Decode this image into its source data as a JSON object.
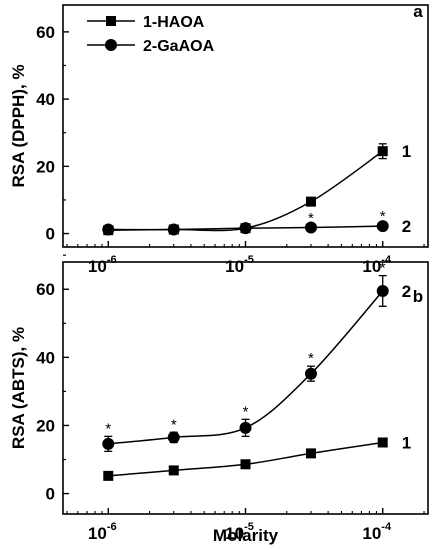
{
  "chart_data": [
    {
      "type": "line",
      "panel": "a",
      "ylabel": "RSA (DPPH), %",
      "xlabel": "",
      "xscale": "log",
      "x": [
        1e-06,
        3e-06,
        1e-05,
        3e-05,
        0.0001
      ],
      "xticks": [
        1e-06,
        1e-05,
        0.0001
      ],
      "xtick_labels": [
        {
          "base": "10",
          "exp": "-6"
        },
        {
          "base": "10",
          "exp": "-5"
        },
        {
          "base": "10",
          "exp": "-4"
        }
      ],
      "ylim": [
        -4,
        68
      ],
      "yticks": [
        "0",
        "20",
        "40",
        "60"
      ],
      "legend": {
        "position": "top-left",
        "entries": [
          "1-HAOA",
          "2-GaAOA"
        ]
      },
      "series": [
        {
          "name": "1-HAOA",
          "curve_label": "1",
          "marker": "square",
          "values": [
            1,
            1.2,
            1.6,
            9.5,
            24.5
          ],
          "errors": [
            0.5,
            0.5,
            0.5,
            1.0,
            2.2
          ],
          "significant": [
            false,
            false,
            false,
            false,
            false
          ]
        },
        {
          "name": "2-GaAOA",
          "curve_label": "2",
          "marker": "circle",
          "values": [
            1.2,
            1.2,
            1.6,
            1.8,
            2.2
          ],
          "errors": [
            0.4,
            0.4,
            0.5,
            0.5,
            0.6
          ],
          "significant": [
            false,
            false,
            false,
            true,
            true
          ]
        }
      ],
      "significance_marker": "*"
    },
    {
      "type": "line",
      "panel": "b",
      "ylabel": "RSA (ABTS), %",
      "xlabel": "Molarity",
      "xscale": "log",
      "x": [
        1e-06,
        3e-06,
        1e-05,
        3e-05,
        0.0001
      ],
      "xticks": [
        1e-06,
        1e-05,
        0.0001
      ],
      "xtick_labels": [
        {
          "base": "10",
          "exp": "-6"
        },
        {
          "base": "10",
          "exp": "-5"
        },
        {
          "base": "10",
          "exp": "-4"
        }
      ],
      "ylim": [
        -6,
        68
      ],
      "yticks": [
        "0",
        "20",
        "40",
        "60"
      ],
      "series": [
        {
          "name": "1",
          "curve_label": "1",
          "marker": "square",
          "values": [
            5.2,
            6.8,
            8.6,
            11.8,
            15.0
          ],
          "errors": [
            0.6,
            0.6,
            0.8,
            1.0,
            0.8
          ],
          "significant": [
            false,
            false,
            false,
            false,
            false
          ]
        },
        {
          "name": "2",
          "curve_label": "2",
          "marker": "circle",
          "values": [
            14.6,
            16.5,
            19.3,
            35.2,
            59.5
          ],
          "errors": [
            2.2,
            1.5,
            2.5,
            2.2,
            4.5
          ],
          "significant": [
            true,
            true,
            true,
            true,
            true
          ]
        }
      ],
      "significance_marker": "*"
    }
  ]
}
